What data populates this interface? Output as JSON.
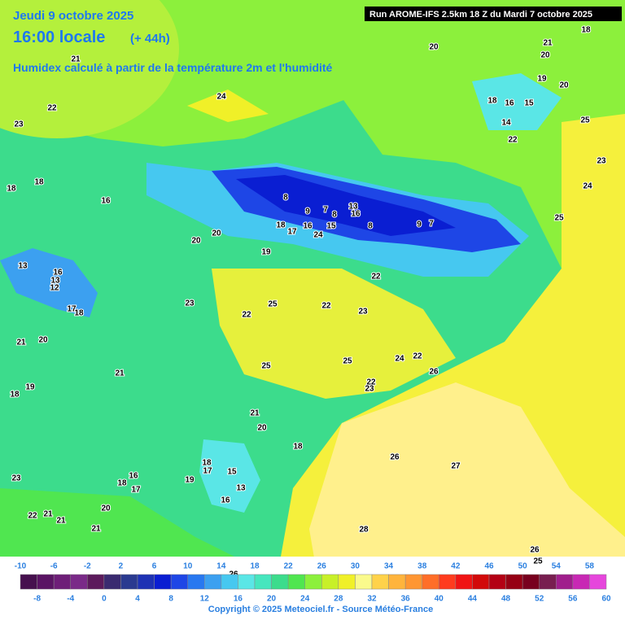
{
  "header": {
    "date": "Jeudi 9 octobre 2025",
    "time": "16:00 locale",
    "lead": "(+ 44h)",
    "subtitle": "Humidex calculé à partir de la température 2m et l'humidité",
    "run": "Run AROME-IFS 2.5km 18 Z du Mardi 7 octobre 2025"
  },
  "map_labels": [
    21,
    22,
    23,
    24,
    20,
    21,
    20,
    18,
    19,
    20,
    18,
    16,
    15,
    14,
    22,
    25,
    23,
    24,
    25,
    18,
    18,
    16,
    8,
    9,
    7,
    8,
    13,
    16,
    8,
    9,
    7,
    18,
    17,
    16,
    15,
    24,
    20,
    20,
    19,
    13,
    16,
    13,
    12,
    17,
    18,
    21,
    20,
    23,
    25,
    22,
    22,
    23,
    22,
    25,
    25,
    24,
    22,
    26,
    22,
    23,
    21,
    18,
    19,
    21,
    20,
    18,
    27,
    26,
    16,
    18,
    17,
    19,
    18,
    17,
    15,
    13,
    16,
    20,
    21,
    22,
    21,
    23,
    21,
    28,
    26,
    25,
    26
  ],
  "colorbar": {
    "ticks": [
      -10,
      -8,
      -6,
      -4,
      -2,
      0,
      2,
      4,
      6,
      8,
      10,
      12,
      14,
      16,
      18,
      20,
      22,
      24,
      26,
      28,
      30,
      32,
      34,
      36,
      38,
      40,
      42,
      44,
      46,
      48,
      50,
      52,
      54,
      56,
      58,
      60
    ],
    "colors": [
      "#46104e",
      "#5a1464",
      "#6e1e78",
      "#7a2a88",
      "#5c1a5c",
      "#3a2a70",
      "#2a3a90",
      "#1e32b4",
      "#0a1ed2",
      "#1e46e6",
      "#2878f0",
      "#3ca0f0",
      "#46c8f0",
      "#5ae6e6",
      "#46e6be",
      "#3cdc8c",
      "#50e650",
      "#8cf03c",
      "#c8f028",
      "#f0f028",
      "#fafa8c",
      "#ffd24a",
      "#ffb43c",
      "#ff9632",
      "#ff6e28",
      "#ff3c1e",
      "#f01414",
      "#d20a0a",
      "#b40014",
      "#960014",
      "#78001e",
      "#781e50",
      "#a01e8c",
      "#c828b4",
      "#e646dc"
    ]
  },
  "footer": {
    "copyright": "Copyright © 2025 Meteociel.fr - Source Météo-France"
  }
}
